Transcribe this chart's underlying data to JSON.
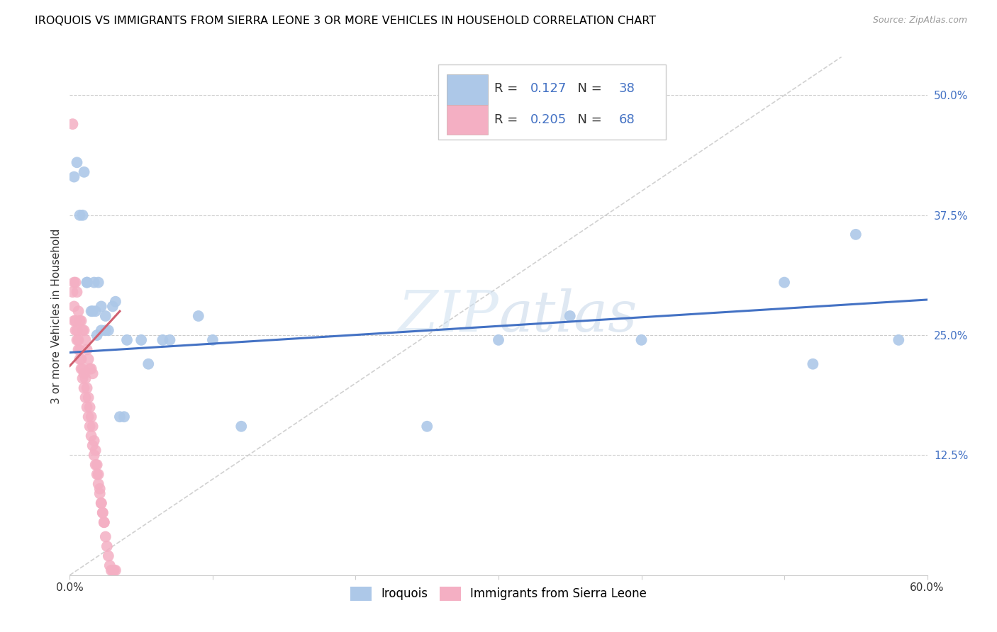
{
  "title": "IROQUOIS VS IMMIGRANTS FROM SIERRA LEONE 3 OR MORE VEHICLES IN HOUSEHOLD CORRELATION CHART",
  "source": "Source: ZipAtlas.com",
  "ylabel": "3 or more Vehicles in Household",
  "xlim": [
    0.0,
    0.6
  ],
  "ylim": [
    0.0,
    0.54
  ],
  "xticks": [
    0.0,
    0.1,
    0.2,
    0.3,
    0.4,
    0.5,
    0.6
  ],
  "xticklabels": [
    "0.0%",
    "",
    "",
    "",
    "",
    "",
    "60.0%"
  ],
  "yticks_right": [
    0.125,
    0.25,
    0.375,
    0.5
  ],
  "ytick_labels_right": [
    "12.5%",
    "25.0%",
    "37.5%",
    "50.0%"
  ],
  "legend_R1": "0.127",
  "legend_N1": "38",
  "legend_R2": "0.205",
  "legend_N2": "68",
  "color_blue": "#adc8e8",
  "color_pink": "#f4afc3",
  "line_color_blue": "#4472c4",
  "line_color_pink": "#d06070",
  "diag_color": "#cccccc",
  "legend_label1": "Iroquois",
  "legend_label2": "Immigrants from Sierra Leone",
  "blue_x": [
    0.003,
    0.005,
    0.007,
    0.009,
    0.01,
    0.012,
    0.012,
    0.015,
    0.016,
    0.017,
    0.018,
    0.019,
    0.02,
    0.022,
    0.022,
    0.025,
    0.025,
    0.027,
    0.03,
    0.032,
    0.035,
    0.038,
    0.04,
    0.05,
    0.055,
    0.065,
    0.07,
    0.09,
    0.1,
    0.12,
    0.25,
    0.3,
    0.35,
    0.4,
    0.5,
    0.52,
    0.55,
    0.58
  ],
  "blue_y": [
    0.415,
    0.43,
    0.375,
    0.375,
    0.42,
    0.305,
    0.305,
    0.275,
    0.275,
    0.305,
    0.275,
    0.25,
    0.305,
    0.255,
    0.28,
    0.255,
    0.27,
    0.255,
    0.28,
    0.285,
    0.165,
    0.165,
    0.245,
    0.245,
    0.22,
    0.245,
    0.245,
    0.27,
    0.245,
    0.155,
    0.155,
    0.245,
    0.27,
    0.245,
    0.305,
    0.22,
    0.355,
    0.245
  ],
  "pink_x": [
    0.002,
    0.003,
    0.004,
    0.005,
    0.006,
    0.007,
    0.008,
    0.009,
    0.01,
    0.011,
    0.012,
    0.013,
    0.014,
    0.015,
    0.016,
    0.002,
    0.003,
    0.004,
    0.005,
    0.006,
    0.007,
    0.008,
    0.009,
    0.01,
    0.011,
    0.012,
    0.013,
    0.014,
    0.015,
    0.016,
    0.017,
    0.018,
    0.019,
    0.02,
    0.021,
    0.022,
    0.023,
    0.024,
    0.025,
    0.026,
    0.027,
    0.028,
    0.029,
    0.03,
    0.031,
    0.032,
    0.003,
    0.004,
    0.005,
    0.006,
    0.007,
    0.008,
    0.009,
    0.01,
    0.011,
    0.012,
    0.013,
    0.014,
    0.015,
    0.016,
    0.017,
    0.018,
    0.019,
    0.02,
    0.021,
    0.022,
    0.023,
    0.024
  ],
  "pink_y": [
    0.47,
    0.305,
    0.305,
    0.295,
    0.275,
    0.265,
    0.265,
    0.255,
    0.255,
    0.245,
    0.235,
    0.225,
    0.215,
    0.215,
    0.21,
    0.295,
    0.28,
    0.265,
    0.255,
    0.245,
    0.235,
    0.225,
    0.215,
    0.21,
    0.205,
    0.195,
    0.185,
    0.175,
    0.165,
    0.155,
    0.14,
    0.13,
    0.115,
    0.105,
    0.09,
    0.075,
    0.065,
    0.055,
    0.04,
    0.03,
    0.02,
    0.01,
    0.005,
    0.005,
    0.005,
    0.005,
    0.265,
    0.255,
    0.245,
    0.235,
    0.225,
    0.215,
    0.205,
    0.195,
    0.185,
    0.175,
    0.165,
    0.155,
    0.145,
    0.135,
    0.125,
    0.115,
    0.105,
    0.095,
    0.085,
    0.075,
    0.065,
    0.055
  ],
  "blue_line_x": [
    0.0,
    0.6
  ],
  "blue_line_y": [
    0.232,
    0.287
  ],
  "pink_line_x": [
    0.0,
    0.035
  ],
  "pink_line_y": [
    0.218,
    0.275
  ],
  "diag_line_x": [
    0.0,
    0.54
  ],
  "diag_line_y": [
    0.0,
    0.54
  ]
}
